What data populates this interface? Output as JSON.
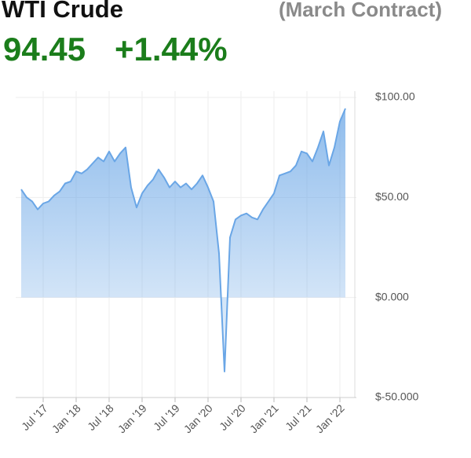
{
  "chart_data": {
    "type": "area",
    "title": "WTI Crude",
    "subtitle": "(March Contract)",
    "price": "94.45",
    "change": "+1.44%",
    "x": [
      "2017-03",
      "2017-04",
      "2017-05",
      "2017-06",
      "2017-07",
      "2017-08",
      "2017-09",
      "2017-10",
      "2017-11",
      "2017-12",
      "2018-01",
      "2018-02",
      "2018-03",
      "2018-04",
      "2018-05",
      "2018-06",
      "2018-07",
      "2018-08",
      "2018-09",
      "2018-10",
      "2018-11",
      "2018-12",
      "2019-01",
      "2019-02",
      "2019-03",
      "2019-04",
      "2019-05",
      "2019-06",
      "2019-07",
      "2019-08",
      "2019-09",
      "2019-10",
      "2019-11",
      "2019-12",
      "2020-01",
      "2020-02",
      "2020-03",
      "2020-04",
      "2020-05",
      "2020-06",
      "2020-07",
      "2020-08",
      "2020-09",
      "2020-10",
      "2020-11",
      "2020-12",
      "2021-01",
      "2021-02",
      "2021-03",
      "2021-04",
      "2021-05",
      "2021-06",
      "2021-07",
      "2021-08",
      "2021-09",
      "2021-10",
      "2021-11",
      "2021-12",
      "2022-01",
      "2022-02"
    ],
    "values": [
      54,
      50,
      48,
      44,
      47,
      48,
      51,
      53,
      57,
      58,
      63,
      62,
      64,
      67,
      70,
      68,
      73,
      68,
      72,
      75,
      55,
      45,
      52,
      56,
      59,
      64,
      60,
      55,
      58,
      55,
      57,
      54,
      57,
      61,
      55,
      48,
      22,
      -37,
      30,
      39,
      41,
      42,
      40,
      39,
      44,
      48,
      52,
      61,
      62,
      63,
      66,
      73,
      72,
      68,
      75,
      83,
      66,
      75,
      88,
      94.45
    ],
    "color": "#6aa6e6",
    "xlim": [
      "2017-02",
      "2022-04"
    ],
    "xticks": [
      {
        "value": "2017-07",
        "label": "Jul '17"
      },
      {
        "value": "2018-01",
        "label": "Jan '18"
      },
      {
        "value": "2018-07",
        "label": "Jul '18"
      },
      {
        "value": "2019-01",
        "label": "Jan '19"
      },
      {
        "value": "2019-07",
        "label": "Jul '19"
      },
      {
        "value": "2020-01",
        "label": "Jan '20"
      },
      {
        "value": "2020-07",
        "label": "Jul '20"
      },
      {
        "value": "2021-01",
        "label": "Jan '21"
      },
      {
        "value": "2021-07",
        "label": "Jul '21"
      },
      {
        "value": "2022-01",
        "label": "Jan '22"
      }
    ],
    "ylim": [
      -50,
      100
    ],
    "yticks": [
      {
        "value": -50,
        "label": "$-50.000"
      },
      {
        "value": 0,
        "label": "$0.000"
      },
      {
        "value": 50,
        "label": "$50.00"
      },
      {
        "value": 100,
        "label": "$100.00"
      }
    ],
    "grid": true
  }
}
